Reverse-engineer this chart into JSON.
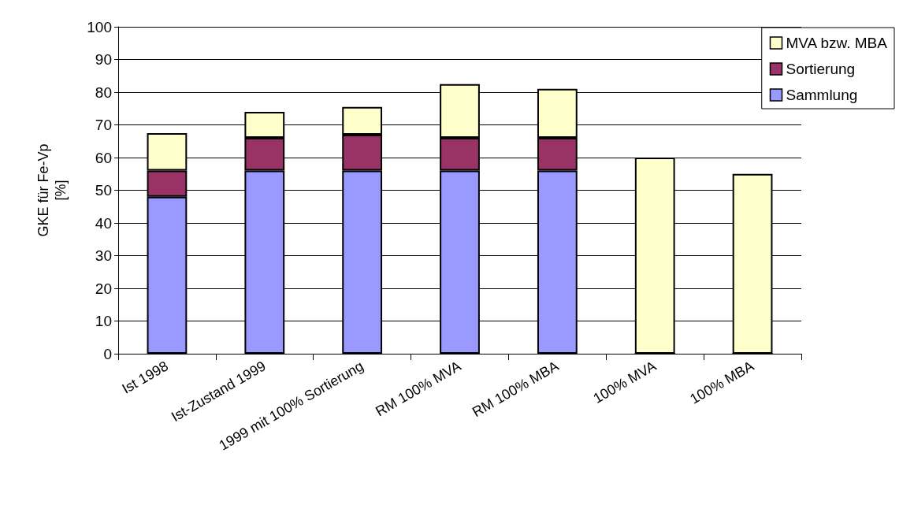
{
  "chart_data": {
    "type": "bar",
    "stacked": true,
    "ylabel": "GKE für Fe-Vp\n[%]",
    "categories": [
      "Ist 1998",
      "Ist-Zustand 1999",
      "1999 mit 100% Sortierung",
      "RM 100% MVA",
      "RM 100% MBA",
      "100% MVA",
      "100% MBA"
    ],
    "series": [
      {
        "name": "Sammlung",
        "color": "#9999ff",
        "values": [
          48,
          56,
          56,
          56,
          56,
          0,
          0
        ]
      },
      {
        "name": "Sortierung",
        "color": "#993366",
        "values": [
          8,
          10,
          11,
          10,
          10,
          0,
          0
        ]
      },
      {
        "name": "MVA bzw. MBA",
        "color": "#ffffcc",
        "values": [
          11.5,
          8,
          8.5,
          16.5,
          15,
          60,
          55
        ]
      }
    ],
    "ylim": [
      0,
      100
    ],
    "yticks": [
      0,
      10,
      20,
      30,
      40,
      50,
      60,
      70,
      80,
      90,
      100
    ],
    "grid": "y",
    "legend": "top right"
  }
}
